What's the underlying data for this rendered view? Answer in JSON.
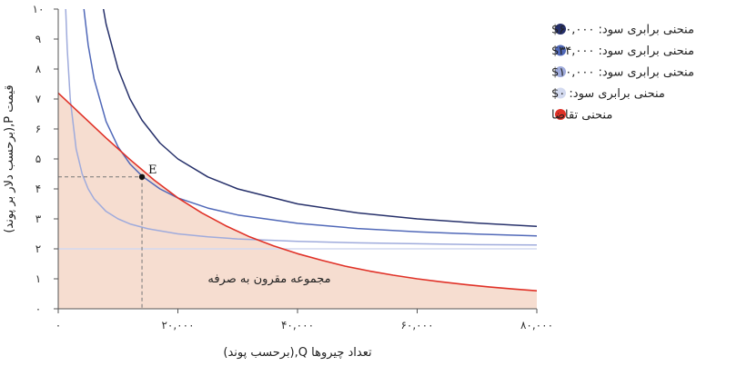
{
  "chart_data": {
    "type": "line",
    "title": "",
    "xlabel": "تعداد چیروها Q,(برحسب پوند)",
    "ylabel": "قیمت P,(برحسب دلار بر پوند)",
    "xlim": [
      0,
      80000
    ],
    "ylim": [
      0,
      10
    ],
    "x_ticks": [
      0,
      20000,
      40000,
      60000,
      80000
    ],
    "x_tick_labels": [
      "۰",
      "۲۰,۰۰۰",
      "۴۰,۰۰۰",
      "۶۰,۰۰۰",
      "۸۰,۰۰۰"
    ],
    "y_ticks": [
      0,
      1,
      2,
      3,
      4,
      5,
      6,
      7,
      8,
      9,
      10
    ],
    "y_tick_labels": [
      "۰",
      "۱",
      "۲",
      "۳",
      "۴",
      "۵",
      "۶",
      "۷",
      "۸",
      "۹",
      "۱۰"
    ],
    "grid": false,
    "legend_position": "top-right",
    "series": [
      {
        "name": "منحنی برابری سود: ۶۰,۰۰۰$",
        "color": "#26306a",
        "kind": "isoprofit",
        "profit": 60000,
        "x": [
          6700,
          8000,
          10000,
          12000,
          14000,
          17000,
          20000,
          25000,
          30000,
          40000,
          50000,
          60000,
          70000,
          80000
        ],
        "y": [
          10.96,
          9.5,
          8.0,
          7.0,
          6.29,
          5.53,
          5.0,
          4.4,
          4.0,
          3.5,
          3.2,
          3.0,
          2.86,
          2.75
        ]
      },
      {
        "name": "منحنی برابری سود: ۳۴,۰۰۰$",
        "color": "#5068b8",
        "kind": "isoprofit",
        "profit": 34000,
        "x": [
          4000,
          5000,
          6000,
          8000,
          10000,
          12000,
          14000,
          17000,
          20000,
          25000,
          30000,
          40000,
          50000,
          60000,
          70000,
          80000
        ],
        "y": [
          10.5,
          8.8,
          7.67,
          6.25,
          5.4,
          4.83,
          4.43,
          4.0,
          3.7,
          3.36,
          3.13,
          2.85,
          2.68,
          2.57,
          2.49,
          2.43
        ]
      },
      {
        "name": "منحنی برابری سود: ۱۰,۰۰۰$",
        "color": "#9fabdc",
        "kind": "isoprofit",
        "profit": 10000,
        "x": [
          1250,
          1500,
          2000,
          3000,
          4000,
          5000,
          6000,
          8000,
          10000,
          12000,
          15000,
          20000,
          25000,
          30000,
          40000,
          50000,
          60000,
          70000,
          80000
        ],
        "y": [
          10.0,
          8.67,
          7.0,
          5.33,
          4.5,
          4.0,
          3.67,
          3.25,
          3.0,
          2.83,
          2.67,
          2.5,
          2.4,
          2.33,
          2.25,
          2.2,
          2.17,
          2.14,
          2.13
        ]
      },
      {
        "name": "منحنی برابری سود: ۰$",
        "color": "#d3daf0",
        "kind": "isoprofit",
        "profit": 0,
        "x": [
          0,
          80000
        ],
        "y": [
          2.0,
          2.0
        ]
      },
      {
        "name": "منحنی تقاضا",
        "color": "#e03127",
        "kind": "demand",
        "x": [
          0,
          4000,
          8000,
          12000,
          14000,
          16000,
          20000,
          24000,
          28000,
          32000,
          36000,
          40000,
          44000,
          48000,
          52000,
          56000,
          60000,
          64000,
          68000,
          72000,
          76000,
          80000
        ],
        "y": [
          7.2,
          6.45,
          5.7,
          4.98,
          4.64,
          4.3,
          3.7,
          3.2,
          2.77,
          2.4,
          2.1,
          1.84,
          1.62,
          1.42,
          1.26,
          1.12,
          1.0,
          0.9,
          0.81,
          0.73,
          0.66,
          0.6
        ]
      }
    ],
    "point": {
      "label": "E",
      "x": 14000,
      "y": 4.4
    },
    "area_label": "مجموعه مقرون به صرفه",
    "area_color": "#f6ddd0"
  }
}
